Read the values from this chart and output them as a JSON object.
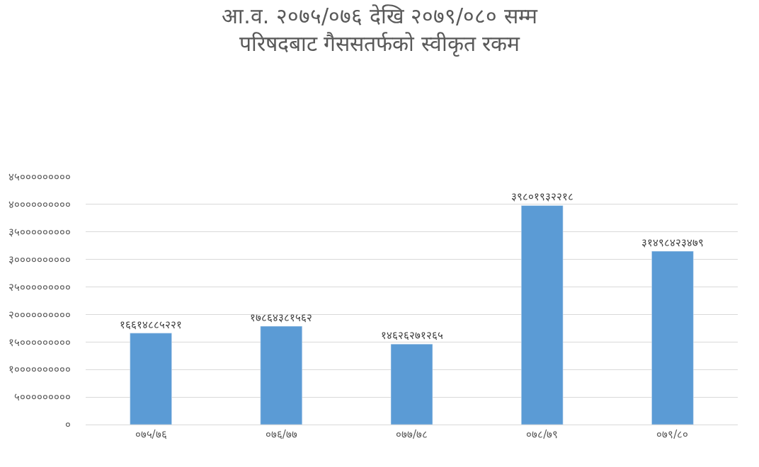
{
  "chart_data": {
    "type": "bar",
    "title": "आ.व. २०७५/०७६ देखि २०७९/०८० सम्म\nपरिषदबाट गैससतर्फको स्वीकृत रकम",
    "categories": [
      "०७५/७६",
      "०७६/७७",
      "०७७/७८",
      "०७८/७९",
      "०७९/८०"
    ],
    "values": [
      16614885221,
      17864381562,
      14626271265,
      39801932218,
      31498423479
    ],
    "value_labels": [
      "१६६१४८८५२२१",
      "१७८६४३८१५६२",
      "१४६२६२७१२६५",
      "३९८०१९३२२१८",
      "३१४९८४२३४७९"
    ],
    "color": "#5b9bd5",
    "ylim": [
      0,
      45000000000
    ],
    "yticks": [
      {
        "value": 0,
        "label": "०"
      },
      {
        "value": 5000000000,
        "label": "५०००००००००"
      },
      {
        "value": 10000000000,
        "label": "१००००००००००"
      },
      {
        "value": 15000000000,
        "label": "१५०००००००००"
      },
      {
        "value": 20000000000,
        "label": "२००००००००००"
      },
      {
        "value": 25000000000,
        "label": "२५०००००००००"
      },
      {
        "value": 30000000000,
        "label": "३००००००००००"
      },
      {
        "value": 35000000000,
        "label": "३५०००००००००"
      },
      {
        "value": 40000000000,
        "label": "४००००००००००"
      },
      {
        "value": 45000000000,
        "label": "४५०००००००००"
      }
    ],
    "grid": "y"
  }
}
